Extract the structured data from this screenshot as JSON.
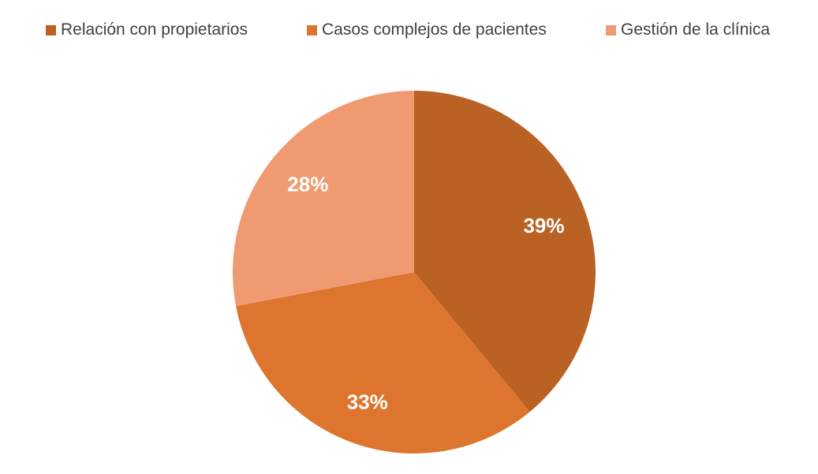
{
  "chart_data": {
    "type": "pie",
    "categories": [
      "Relación con propietarios",
      "Casos complejos de pacientes",
      "Gestión de la clínica"
    ],
    "values": [
      39,
      33,
      28
    ],
    "data_labels": [
      "39%",
      "33%",
      "28%"
    ],
    "colors": [
      "#BA6124",
      "#DE752E",
      "#F09A72"
    ],
    "legend_position": "top",
    "title": ""
  }
}
